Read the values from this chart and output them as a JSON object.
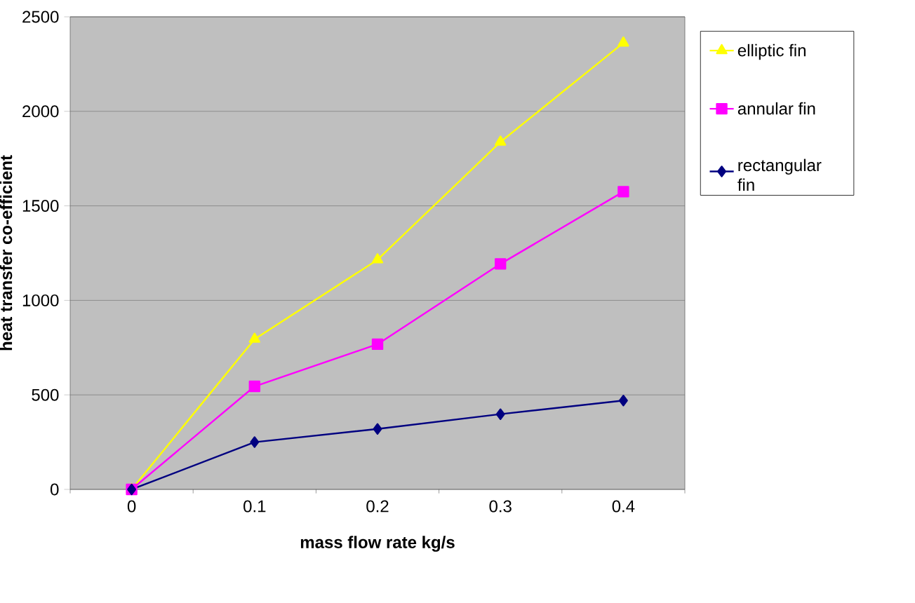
{
  "chart_data": {
    "type": "line",
    "xlabel": "mass flow rate kg/s",
    "ylabel": "heat transfer co-efficient",
    "categories": [
      "0",
      "0.1",
      "0.2",
      "0.3",
      "0.4"
    ],
    "series": [
      {
        "name": "elliptic fin",
        "color": "#ffff00",
        "marker": "triangle",
        "values": [
          0,
          795,
          1215,
          1838,
          2362
        ]
      },
      {
        "name": "annular fin",
        "color": "#ff00ff",
        "marker": "square",
        "values": [
          0,
          545,
          768,
          1193,
          1575
        ]
      },
      {
        "name": "rectangular fin",
        "color": "#000080",
        "marker": "diamond",
        "values": [
          0,
          250,
          320,
          398,
          470
        ]
      }
    ],
    "ylim": [
      0,
      2500
    ],
    "yticks": [
      0,
      500,
      1000,
      1500,
      2000,
      2500
    ],
    "grid": "y",
    "legend": "right"
  }
}
